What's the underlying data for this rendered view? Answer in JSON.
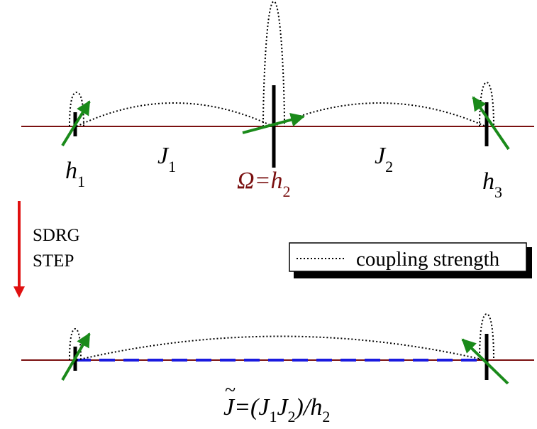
{
  "top_chain": {
    "site_labels": [
      {
        "main": "h",
        "sub": "1"
      },
      {
        "main": "Ω=h",
        "sub": "2"
      },
      {
        "main": "h",
        "sub": "3"
      }
    ],
    "coupling_labels": [
      {
        "main": "J",
        "sub": "1"
      },
      {
        "main": "J",
        "sub": "2"
      }
    ]
  },
  "step": {
    "line1": "SDRG",
    "line2": "STEP"
  },
  "legend": {
    "label": "coupling strength"
  },
  "bottom_chain": {
    "formula": {
      "j": "J",
      "tilde": "~",
      "eq_open": "=(J",
      "sub1": "1",
      "mid": "J",
      "sub2": "2",
      "close": ")/h",
      "sub3": "2"
    }
  },
  "colors": {
    "chain_line": "#7a1010",
    "spin_arrow": "#1a8a1a",
    "field_bar": "#000000",
    "step_arrow": "#e01010",
    "effective_coupling": "#1a1ae0",
    "omega_label": "#7a1010",
    "text": "#000000"
  }
}
